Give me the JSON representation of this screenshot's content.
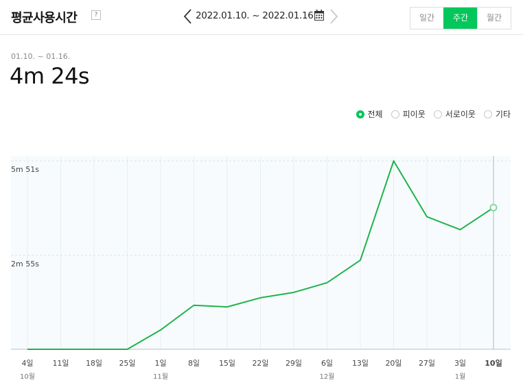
{
  "header": {
    "title": "평균사용시간",
    "help_icon": "question-icon",
    "date_range": "2022.01.10. ~ 2022.01.16.",
    "calendar_icon": "calendar-icon",
    "periods": [
      {
        "label": "일간",
        "active": false
      },
      {
        "label": "주간",
        "active": true
      },
      {
        "label": "월간",
        "active": false
      }
    ]
  },
  "summary": {
    "range_label": "01.10. ~ 01.16.",
    "value": "4m 24s"
  },
  "legend": [
    {
      "label": "전체",
      "selected": true
    },
    {
      "label": "피이웃",
      "selected": false
    },
    {
      "label": "서로이웃",
      "selected": false
    },
    {
      "label": "기타",
      "selected": false
    }
  ],
  "colors": {
    "accent": "#03c75a",
    "line": "#1db34a",
    "plot_bg": "#f7fbfd"
  },
  "chart_data": {
    "type": "line",
    "y_unit": "seconds",
    "ylim": [
      0,
      351
    ],
    "y_ticks": [
      {
        "value": 175,
        "label": "2m 55s"
      },
      {
        "value": 351,
        "label": "5m 51s"
      }
    ],
    "categories": [
      "4일",
      "11일",
      "18일",
      "25일",
      "1일",
      "8일",
      "15일",
      "22일",
      "29일",
      "6일",
      "13일",
      "20일",
      "27일",
      "3일",
      "10일"
    ],
    "month_labels": [
      "10월",
      "",
      "",
      "",
      "11월",
      "",
      "",
      "",
      "",
      "12월",
      "",
      "",
      "",
      "1월",
      ""
    ],
    "series": [
      {
        "values": [
          0,
          0,
          0,
          0,
          36,
          82,
          79,
          96,
          106,
          124,
          166,
          351,
          247,
          223,
          264
        ]
      }
    ],
    "highlight_index": 14,
    "grid": true
  }
}
